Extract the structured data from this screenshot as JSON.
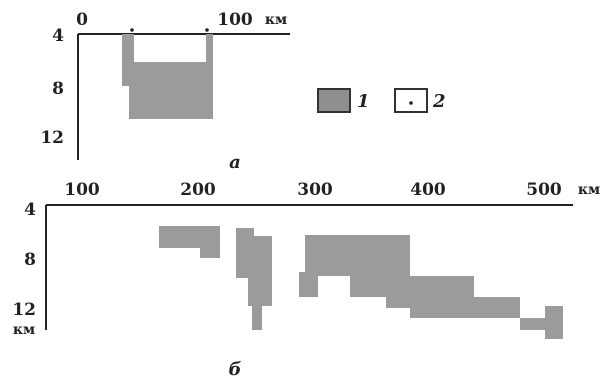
{
  "panel_a": {
    "x_ticks": [
      "0",
      "100"
    ],
    "x_unit": "км",
    "y_ticks": [
      "4",
      "8",
      "12"
    ],
    "caption": "а"
  },
  "legend": {
    "item1_label": "1",
    "item2_label": "2",
    "item1_color": "#8f8f8f",
    "item2_marker": "dot"
  },
  "panel_b": {
    "x_ticks": [
      "100",
      "200",
      "300",
      "400",
      "500"
    ],
    "x_unit": "км",
    "y_ticks": [
      "4",
      "8",
      "12"
    ],
    "y_unit": "км",
    "caption": "б"
  },
  "colors": {
    "fill": "#9b9b9b",
    "axis": "#222222"
  }
}
